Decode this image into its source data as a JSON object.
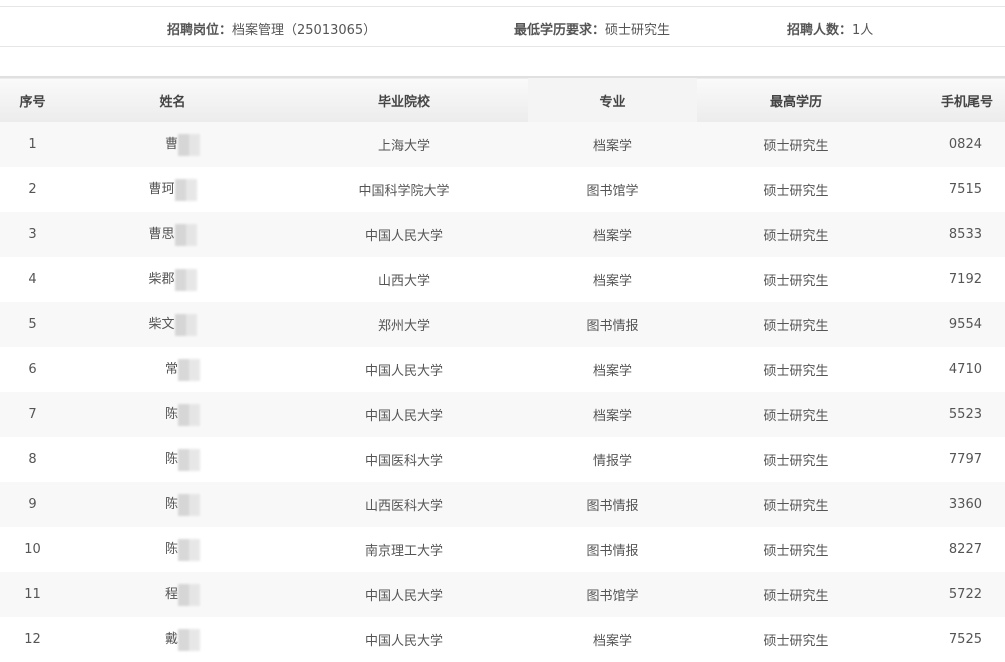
{
  "info": {
    "position_label": "招聘岗位：",
    "position_value": "档案管理（25013065）",
    "education_label": "最低学历要求：",
    "education_value": "硕士研究生",
    "count_label": "招聘人数：",
    "count_value": "1人"
  },
  "table": {
    "headers": [
      "序号",
      "姓名",
      "毕业院校",
      "专业",
      "最高学历",
      "手机尾号"
    ],
    "rows": [
      {
        "no": "1",
        "name": "曹",
        "school": "上海大学",
        "major": "档案学",
        "degree": "硕士研究生",
        "phone": "0824"
      },
      {
        "no": "2",
        "name": "曹珂",
        "school": "中国科学院大学",
        "major": "图书馆学",
        "degree": "硕士研究生",
        "phone": "7515"
      },
      {
        "no": "3",
        "name": "曹思",
        "school": "中国人民大学",
        "major": "档案学",
        "degree": "硕士研究生",
        "phone": "8533"
      },
      {
        "no": "4",
        "name": "柴郡",
        "school": "山西大学",
        "major": "档案学",
        "degree": "硕士研究生",
        "phone": "7192"
      },
      {
        "no": "5",
        "name": "柴文",
        "school": "郑州大学",
        "major": "图书情报",
        "degree": "硕士研究生",
        "phone": "9554"
      },
      {
        "no": "6",
        "name": "常",
        "school": "中国人民大学",
        "major": "档案学",
        "degree": "硕士研究生",
        "phone": "4710"
      },
      {
        "no": "7",
        "name": "陈",
        "school": "中国人民大学",
        "major": "档案学",
        "degree": "硕士研究生",
        "phone": "5523"
      },
      {
        "no": "8",
        "name": "陈",
        "school": "中国医科大学",
        "major": "情报学",
        "degree": "硕士研究生",
        "phone": "7797"
      },
      {
        "no": "9",
        "name": "陈",
        "school": "山西医科大学",
        "major": "图书情报",
        "degree": "硕士研究生",
        "phone": "3360"
      },
      {
        "no": "10",
        "name": "陈",
        "school": "南京理工大学",
        "major": "图书情报",
        "degree": "硕士研究生",
        "phone": "8227"
      },
      {
        "no": "11",
        "name": "程",
        "school": "中国人民大学",
        "major": "图书馆学",
        "degree": "硕士研究生",
        "phone": "5722"
      },
      {
        "no": "12",
        "name": "戴",
        "school": "中国人民大学",
        "major": "档案学",
        "degree": "硕士研究生",
        "phone": "7525"
      }
    ]
  }
}
